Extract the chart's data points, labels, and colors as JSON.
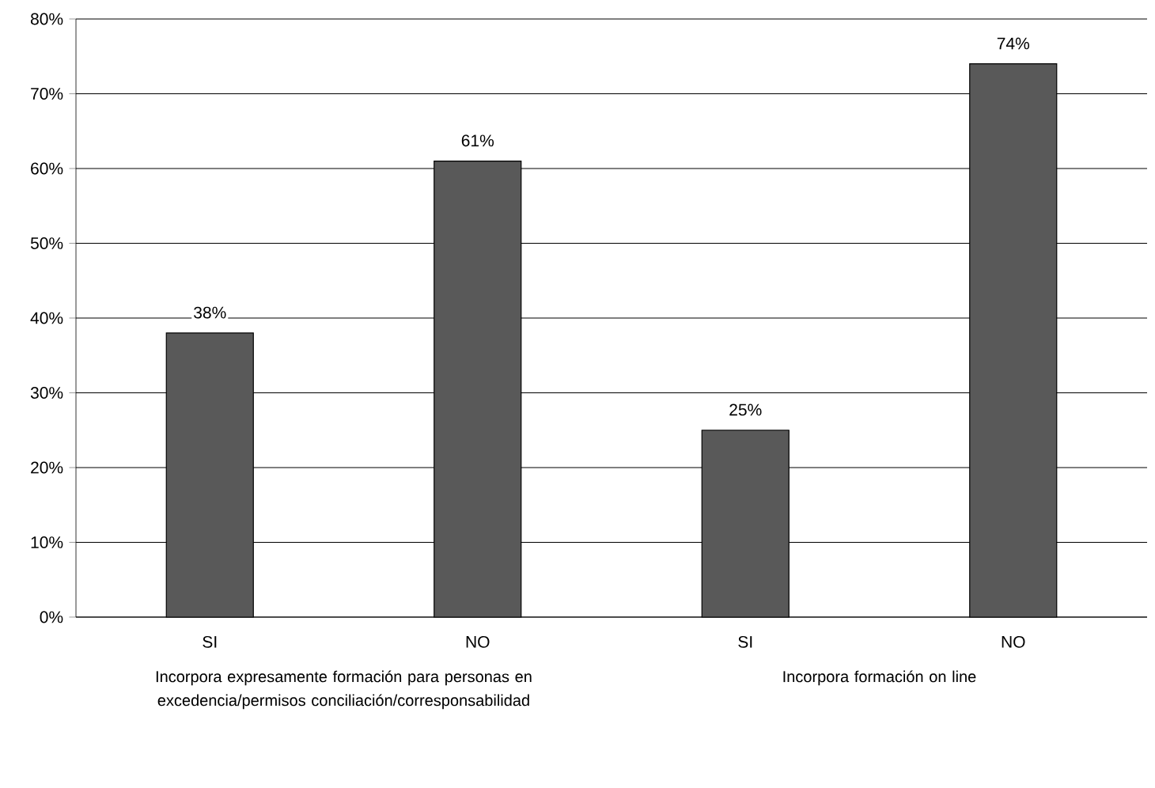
{
  "chart_data": {
    "type": "bar",
    "categories": [
      "SI",
      "NO",
      "SI",
      "NO"
    ],
    "values": [
      38,
      61,
      25,
      74
    ],
    "value_labels": [
      "38%",
      "61%",
      "25%",
      "74%"
    ],
    "color": "#595959",
    "ylim": [
      0,
      80
    ],
    "yticks": [
      {
        "value": 0,
        "label": "0%"
      },
      {
        "value": 10,
        "label": "10%"
      },
      {
        "value": 20,
        "label": "20%"
      },
      {
        "value": 30,
        "label": "30%"
      },
      {
        "value": 40,
        "label": "40%"
      },
      {
        "value": 50,
        "label": "50%"
      },
      {
        "value": 60,
        "label": "60%"
      },
      {
        "value": 70,
        "label": "70%"
      },
      {
        "value": 80,
        "label": "80%"
      }
    ],
    "grid": "y",
    "annotations": [
      "Incorpora expresamente formación para personas en excedencia/permisos conciliación/corresponsabilidad",
      "Incorpora formación on line"
    ]
  }
}
